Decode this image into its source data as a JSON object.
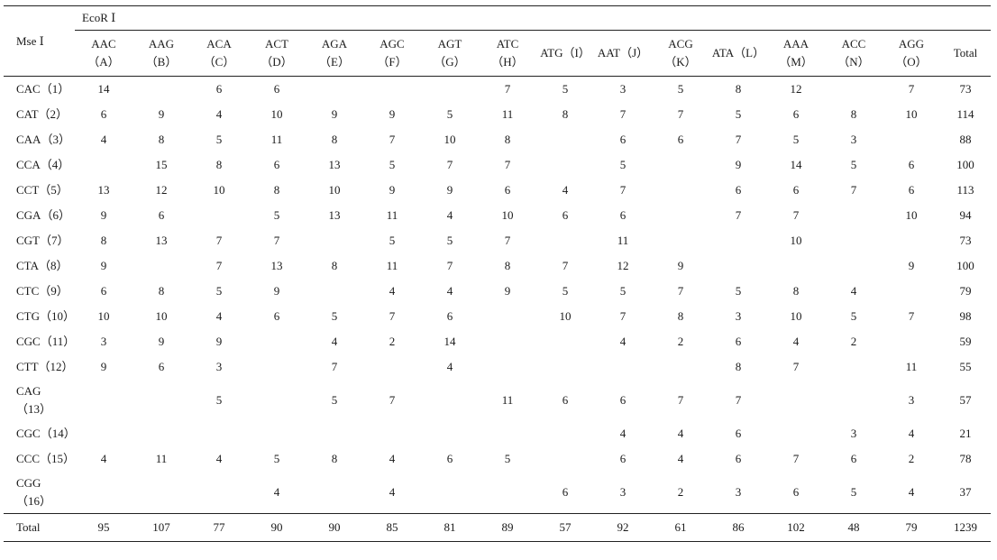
{
  "table": {
    "corner_label": "Mse Ⅰ",
    "group_label": "EcoR Ⅰ",
    "columns": [
      [
        "AAC",
        "（A）"
      ],
      [
        "AAG",
        "（B）"
      ],
      [
        "ACA",
        "（C）"
      ],
      [
        "ACT",
        "（D）"
      ],
      [
        "AGA",
        "（E）"
      ],
      [
        "AGC",
        "（F）"
      ],
      [
        "AGT",
        "（G）"
      ],
      [
        "ATC",
        "（H）"
      ],
      [
        "ATG（I）",
        ""
      ],
      [
        "AAT（J）",
        ""
      ],
      [
        "ACG",
        "（K）"
      ],
      [
        "ATA（L）",
        ""
      ],
      [
        "AAA",
        "（M）"
      ],
      [
        "ACC",
        "（N）"
      ],
      [
        "AGG",
        "（O）"
      ],
      [
        "Total",
        ""
      ]
    ],
    "rows": [
      {
        "label": [
          "CAC（1）",
          ""
        ],
        "cells": [
          "14",
          "",
          "6",
          "6",
          "",
          "",
          "",
          "7",
          "5",
          "3",
          "5",
          "8",
          "12",
          "",
          "7",
          "73"
        ]
      },
      {
        "label": [
          "CAT（2）",
          ""
        ],
        "cells": [
          "6",
          "9",
          "4",
          "10",
          "9",
          "9",
          "5",
          "11",
          "8",
          "7",
          "7",
          "5",
          "6",
          "8",
          "10",
          "114"
        ]
      },
      {
        "label": [
          "CAA（3）",
          ""
        ],
        "cells": [
          "4",
          "8",
          "5",
          "11",
          "8",
          "7",
          "10",
          "8",
          "",
          "6",
          "6",
          "7",
          "5",
          "3",
          "",
          "88"
        ]
      },
      {
        "label": [
          "CCA（4）",
          ""
        ],
        "cells": [
          "",
          "15",
          "8",
          "6",
          "13",
          "5",
          "7",
          "7",
          "",
          "5",
          "",
          "9",
          "14",
          "5",
          "6",
          "100"
        ]
      },
      {
        "label": [
          "CCT（5）",
          ""
        ],
        "cells": [
          "13",
          "12",
          "10",
          "8",
          "10",
          "9",
          "9",
          "6",
          "4",
          "7",
          "",
          "6",
          "6",
          "7",
          "6",
          "113"
        ]
      },
      {
        "label": [
          "CGA（6）",
          ""
        ],
        "cells": [
          "9",
          "6",
          "",
          "5",
          "13",
          "11",
          "4",
          "10",
          "6",
          "6",
          "",
          "7",
          "7",
          "",
          "10",
          "94"
        ]
      },
      {
        "label": [
          "CGT（7）",
          ""
        ],
        "cells": [
          "8",
          "13",
          "7",
          "7",
          "",
          "5",
          "5",
          "7",
          "",
          "11",
          "",
          "",
          "10",
          "",
          "",
          "73"
        ]
      },
      {
        "label": [
          "CTA（8）",
          ""
        ],
        "cells": [
          "9",
          "",
          "7",
          "13",
          "8",
          "11",
          "7",
          "8",
          "7",
          "12",
          "9",
          "",
          "",
          "",
          "9",
          "100"
        ]
      },
      {
        "label": [
          "CTC（9）",
          ""
        ],
        "cells": [
          "6",
          "8",
          "5",
          "9",
          "",
          "4",
          "4",
          "9",
          "5",
          "5",
          "7",
          "5",
          "8",
          "4",
          "",
          "79"
        ]
      },
      {
        "label": [
          "CTG（10）",
          ""
        ],
        "cells": [
          "10",
          "10",
          "4",
          "6",
          "5",
          "7",
          "6",
          "",
          "10",
          "7",
          "8",
          "3",
          "10",
          "5",
          "7",
          "98"
        ]
      },
      {
        "label": [
          "CGC（11）",
          ""
        ],
        "cells": [
          "3",
          "9",
          "9",
          "",
          "4",
          "2",
          "14",
          "",
          "",
          "4",
          "2",
          "6",
          "4",
          "2",
          "",
          "59"
        ]
      },
      {
        "label": [
          "CTT（12）",
          ""
        ],
        "cells": [
          "9",
          "6",
          "3",
          "",
          "7",
          "",
          "4",
          "",
          "",
          "",
          "",
          "8",
          "7",
          "",
          "11",
          "55"
        ]
      },
      {
        "label": [
          "CAG",
          "（13）"
        ],
        "cells": [
          "",
          "",
          "5",
          "",
          "5",
          "7",
          "",
          "11",
          "6",
          "6",
          "7",
          "7",
          "",
          "",
          "3",
          "57"
        ]
      },
      {
        "label": [
          "CGC（14）",
          ""
        ],
        "cells": [
          "",
          "",
          "",
          "",
          "",
          "",
          "",
          "",
          "",
          "4",
          "4",
          "6",
          "",
          "3",
          "4",
          "21"
        ]
      },
      {
        "label": [
          "CCC（15）",
          ""
        ],
        "cells": [
          "4",
          "11",
          "4",
          "5",
          "8",
          "4",
          "6",
          "5",
          "",
          "6",
          "4",
          "6",
          "7",
          "6",
          "2",
          "78"
        ]
      },
      {
        "label": [
          "CGG",
          "（16）"
        ],
        "cells": [
          "",
          "",
          "",
          "4",
          "",
          "4",
          "",
          "",
          "6",
          "3",
          "2",
          "3",
          "6",
          "5",
          "4",
          "37"
        ]
      }
    ],
    "total_row": {
      "label": "Total",
      "cells": [
        "95",
        "107",
        "77",
        "90",
        "90",
        "85",
        "81",
        "89",
        "57",
        "92",
        "61",
        "86",
        "102",
        "48",
        "79",
        "1239"
      ]
    }
  }
}
